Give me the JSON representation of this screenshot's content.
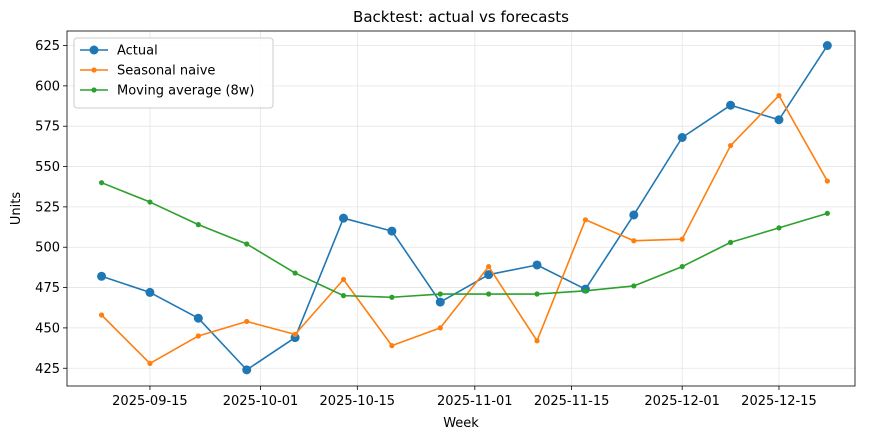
{
  "chart_data": {
    "type": "line",
    "title": "Backtest: actual vs forecasts",
    "xlabel": "Week",
    "ylabel": "Units",
    "x": [
      "2025-09-08",
      "2025-09-15",
      "2025-09-22",
      "2025-09-29",
      "2025-10-06",
      "2025-10-13",
      "2025-10-20",
      "2025-10-27",
      "2025-11-03",
      "2025-11-10",
      "2025-11-17",
      "2025-11-24",
      "2025-12-01",
      "2025-12-08",
      "2025-12-15",
      "2025-12-22"
    ],
    "xticks": [
      "2025-09-15",
      "2025-10-01",
      "2025-10-15",
      "2025-11-01",
      "2025-11-15",
      "2025-12-01",
      "2025-12-15"
    ],
    "yticks": [
      425,
      450,
      475,
      500,
      525,
      550,
      575,
      600,
      625
    ],
    "ylim": [
      414,
      634
    ],
    "xlim": [
      "2025-09-03",
      "2025-12-26"
    ],
    "grid": true,
    "legend_position": "top-left",
    "series": [
      {
        "name": "Actual",
        "color": "#1f77b4",
        "marker": "large-circle",
        "values": [
          482,
          472,
          456,
          424,
          444,
          518,
          510,
          466,
          483,
          489,
          474,
          520,
          568,
          588,
          579,
          625
        ]
      },
      {
        "name": "Seasonal naive",
        "color": "#ff7f0e",
        "marker": "small-dot",
        "values": [
          458,
          428,
          445,
          454,
          446,
          480,
          439,
          450,
          488,
          442,
          517,
          504,
          505,
          563,
          594,
          541
        ]
      },
      {
        "name": "Moving average (8w)",
        "color": "#2ca02c",
        "marker": "small-dot",
        "values": [
          540,
          528,
          514,
          502,
          484,
          470,
          469,
          471,
          471,
          471,
          473,
          476,
          488,
          503,
          512,
          521
        ]
      }
    ]
  }
}
